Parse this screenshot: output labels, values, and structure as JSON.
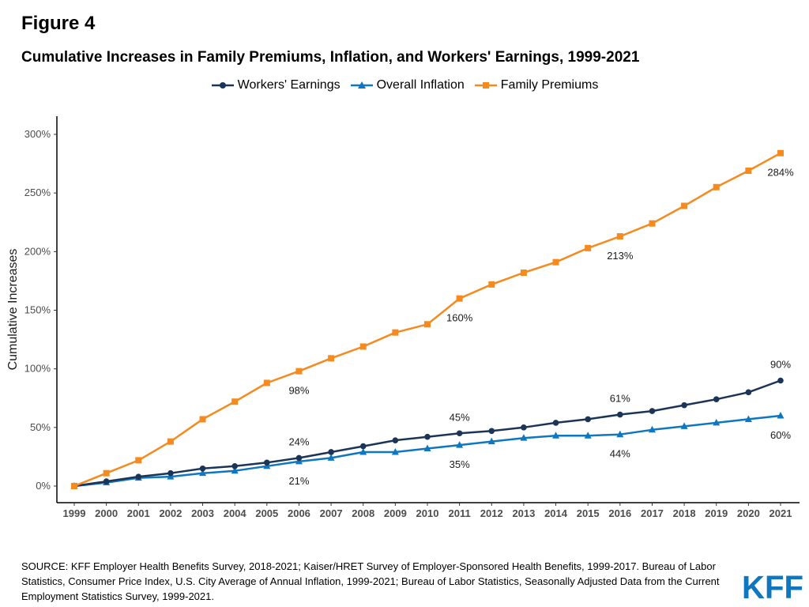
{
  "figure_label": "Figure 4",
  "chart_data": {
    "type": "line",
    "title": "Cumulative Increases in Family Premiums, Inflation, and Workers' Earnings, 1999-2021",
    "xlabel": "",
    "ylabel": "Cumulative Increases",
    "x": [
      "1999",
      "2000",
      "2001",
      "2002",
      "2003",
      "2004",
      "2005",
      "2006",
      "2007",
      "2008",
      "2009",
      "2010",
      "2011",
      "2012",
      "2013",
      "2014",
      "2015",
      "2016",
      "2017",
      "2018",
      "2019",
      "2020",
      "2021"
    ],
    "ylim": [
      0,
      300
    ],
    "yticks": [
      0,
      50,
      100,
      150,
      200,
      250,
      300
    ],
    "ytick_labels": [
      "0%",
      "50%",
      "100%",
      "150%",
      "200%",
      "250%",
      "300%"
    ],
    "grid": false,
    "legend_position": "top",
    "series": [
      {
        "name": "Workers' Earnings",
        "color": "#1c3557",
        "marker": "circle",
        "values": [
          0,
          4,
          8,
          11,
          15,
          17,
          20,
          24,
          29,
          34,
          39,
          42,
          45,
          47,
          50,
          54,
          57,
          61,
          64,
          69,
          74,
          80,
          90
        ]
      },
      {
        "name": "Overall Inflation",
        "color": "#0f76c0",
        "marker": "triangle",
        "values": [
          0,
          3,
          7,
          8,
          11,
          13,
          17,
          21,
          24,
          29,
          29,
          32,
          35,
          38,
          41,
          43,
          43,
          44,
          48,
          51,
          54,
          57,
          60
        ]
      },
      {
        "name": "Family Premiums",
        "color": "#f58a1f",
        "marker": "square",
        "values": [
          0,
          11,
          22,
          38,
          57,
          72,
          88,
          98,
          109,
          119,
          131,
          138,
          160,
          172,
          182,
          191,
          203,
          213,
          224,
          239,
          255,
          269,
          284
        ]
      }
    ],
    "annotations": [
      {
        "series": 2,
        "x": "2006",
        "text": "98%",
        "placement": "below"
      },
      {
        "series": 2,
        "x": "2011",
        "text": "160%",
        "placement": "below"
      },
      {
        "series": 2,
        "x": "2016",
        "text": "213%",
        "placement": "below"
      },
      {
        "series": 2,
        "x": "2021",
        "text": "284%",
        "placement": "below"
      },
      {
        "series": 0,
        "x": "2006",
        "text": "24%",
        "placement": "above"
      },
      {
        "series": 0,
        "x": "2011",
        "text": "45%",
        "placement": "above"
      },
      {
        "series": 0,
        "x": "2016",
        "text": "61%",
        "placement": "above"
      },
      {
        "series": 0,
        "x": "2021",
        "text": "90%",
        "placement": "above"
      },
      {
        "series": 1,
        "x": "2006",
        "text": "21%",
        "placement": "below"
      },
      {
        "series": 1,
        "x": "2011",
        "text": "35%",
        "placement": "below"
      },
      {
        "series": 1,
        "x": "2016",
        "text": "44%",
        "placement": "below"
      },
      {
        "series": 1,
        "x": "2021",
        "text": "60%",
        "placement": "below"
      }
    ]
  },
  "source_note": "SOURCE: KFF Employer Health Benefits Survey, 2018-2021; Kaiser/HRET Survey of Employer-Sponsored Health Benefits, 1999-2017. Bureau of Labor Statistics, Consumer Price Index, U.S. City Average of Annual Inflation, 1999-2021; Bureau of Labor Statistics, Seasonally Adjusted Data from the Current Employment Statistics Survey, 1999-2021.",
  "logo_text": "KFF",
  "logo_color": "#0f76c0"
}
